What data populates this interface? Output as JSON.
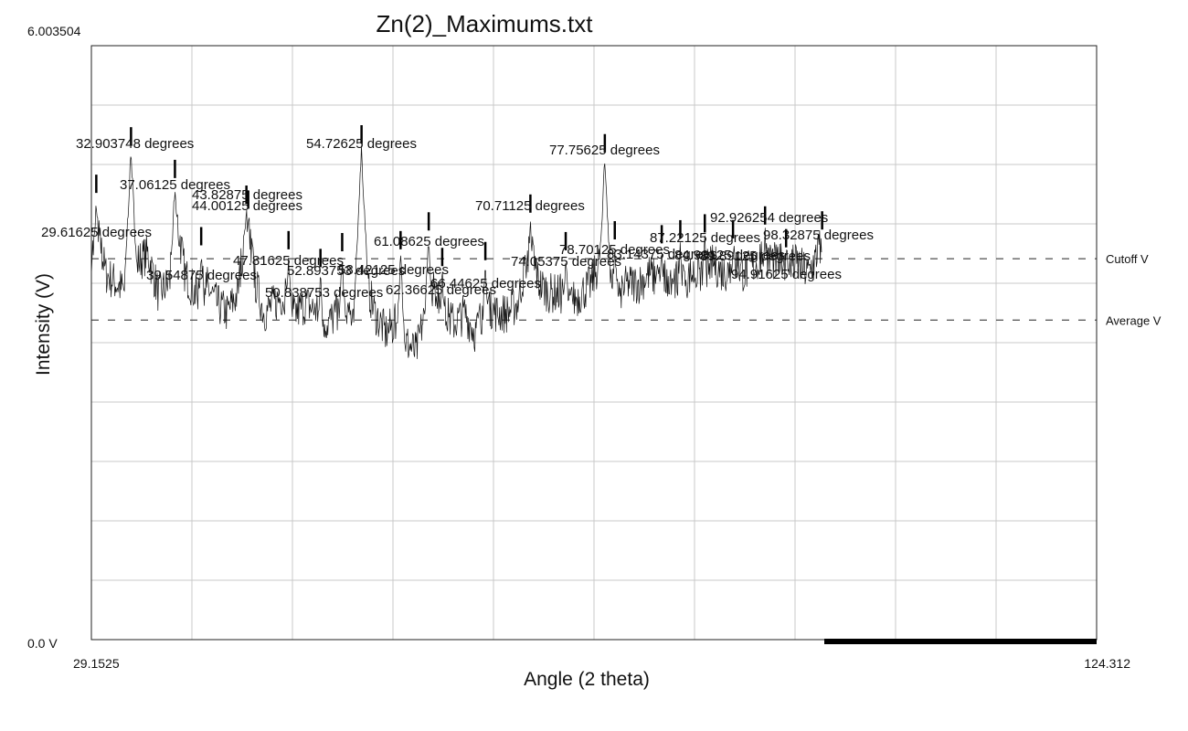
{
  "chart_data": {
    "type": "line",
    "title": "Zn(2)_Maximums.txt",
    "xlabel": "Angle (2 theta)",
    "ylabel": "Intensity (V)",
    "x_min_label": "29.1525",
    "x_max_label": "124.312",
    "y_max_label": "6.003504",
    "y_min_label": "0.0 V",
    "xlim": [
      29.1525,
      124.312
    ],
    "ylim": [
      0,
      6.003504
    ],
    "grid": true,
    "colors": {
      "line": "#111111",
      "grid": "#c8c8c8",
      "frame": "#222222"
    },
    "reference_lines": [
      {
        "name": "Cutoff V",
        "y": 3.85
      },
      {
        "name": "Average V",
        "y": 3.23
      }
    ],
    "peaks": [
      {
        "x": 29.61625,
        "y": 4.7,
        "label": "29.61625 degrees"
      },
      {
        "x": 32.903748,
        "y": 5.18,
        "label": "32.903748 degrees"
      },
      {
        "x": 37.06125,
        "y": 4.85,
        "label": "37.06125 degrees"
      },
      {
        "x": 39.54875,
        "y": 4.17,
        "label": "39.54875 degrees"
      },
      {
        "x": 43.82875,
        "y": 4.59,
        "label": "43.82875 degrees"
      },
      {
        "x": 44.00125,
        "y": 4.54,
        "label": "44.00125 degrees"
      },
      {
        "x": 47.81625,
        "y": 4.13,
        "label": "47.81625 degrees"
      },
      {
        "x": 50.838753,
        "y": 3.95,
        "label": "50.838753 degrees"
      },
      {
        "x": 52.893753,
        "y": 4.11,
        "label": "52.893753 degrees"
      },
      {
        "x": 54.72625,
        "y": 5.2,
        "label": "54.72625 degrees"
      },
      {
        "x": 58.42125,
        "y": 4.13,
        "label": "58.42125 degrees"
      },
      {
        "x": 61.08625,
        "y": 4.32,
        "label": "61.08625 degrees"
      },
      {
        "x": 62.36625,
        "y": 3.96,
        "label": "62.36625 degrees"
      },
      {
        "x": 66.44625,
        "y": 4.02,
        "label": "66.44625 degrees"
      },
      {
        "x": 70.71125,
        "y": 4.5,
        "label": "70.71125 degrees"
      },
      {
        "x": 74.05375,
        "y": 4.12,
        "label": "74.05375 degrees"
      },
      {
        "x": 77.75625,
        "y": 5.11,
        "label": "77.75625 degrees"
      },
      {
        "x": 78.70125,
        "y": 4.23,
        "label": "78.70125 degrees"
      },
      {
        "x": 83.14375,
        "y": 4.19,
        "label": "83.14375 degrees"
      },
      {
        "x": 84.90125,
        "y": 4.24,
        "label": "84.90125 degrees"
      },
      {
        "x": 87.22125,
        "y": 4.3,
        "label": "87.22125 degrees"
      },
      {
        "x": 89.89125,
        "y": 4.24,
        "label": "89.89125 degrees"
      },
      {
        "x": 92.926254,
        "y": 4.38,
        "label": "92.926254 degrees"
      },
      {
        "x": 94.91625,
        "y": 4.15,
        "label": "94.91625 degrees"
      },
      {
        "x": 98.32875,
        "y": 4.33,
        "label": "98.32875 degrees"
      }
    ],
    "trace_points": [
      [
        29.15,
        3.9
      ],
      [
        29.8,
        4.1
      ],
      [
        30.5,
        3.7
      ],
      [
        31.5,
        3.6
      ],
      [
        32.5,
        3.5
      ],
      [
        33.3,
        3.8
      ],
      [
        34.5,
        3.9
      ],
      [
        35.5,
        3.5
      ],
      [
        36.5,
        3.6
      ],
      [
        37.3,
        4.2
      ],
      [
        38.0,
        3.7
      ],
      [
        39.0,
        3.5
      ],
      [
        40.0,
        3.6
      ],
      [
        41.0,
        3.4
      ],
      [
        42.0,
        3.3
      ],
      [
        43.0,
        3.5
      ],
      [
        43.9,
        4.3
      ],
      [
        44.7,
        3.6
      ],
      [
        45.5,
        3.3
      ],
      [
        46.5,
        3.4
      ],
      [
        47.5,
        3.5
      ],
      [
        48.5,
        3.3
      ],
      [
        49.5,
        3.4
      ],
      [
        50.5,
        3.3
      ],
      [
        51.5,
        3.2
      ],
      [
        52.5,
        3.3
      ],
      [
        53.5,
        3.2
      ],
      [
        54.5,
        3.6
      ],
      [
        55.2,
        3.6
      ],
      [
        56.0,
        3.3
      ],
      [
        57.0,
        3.1
      ],
      [
        58.0,
        3.2
      ],
      [
        59.0,
        3.0
      ],
      [
        59.9,
        2.9
      ],
      [
        60.7,
        3.3
      ],
      [
        61.5,
        3.6
      ],
      [
        62.5,
        3.3
      ],
      [
        63.5,
        3.2
      ],
      [
        64.5,
        3.3
      ],
      [
        65.5,
        3.1
      ],
      [
        66.5,
        3.4
      ],
      [
        67.5,
        3.3
      ],
      [
        68.5,
        3.3
      ],
      [
        69.5,
        3.4
      ],
      [
        70.7,
        4.0
      ],
      [
        71.5,
        3.6
      ],
      [
        72.5,
        3.5
      ],
      [
        73.5,
        3.5
      ],
      [
        74.5,
        3.4
      ],
      [
        75.5,
        3.5
      ],
      [
        76.5,
        3.6
      ],
      [
        77.2,
        3.8
      ],
      [
        78.1,
        3.6
      ],
      [
        79.0,
        3.5
      ],
      [
        80.0,
        3.6
      ],
      [
        81.0,
        3.6
      ],
      [
        82.0,
        3.7
      ],
      [
        83.0,
        3.6
      ],
      [
        84.0,
        3.7
      ],
      [
        85.0,
        3.6
      ],
      [
        86.0,
        3.7
      ],
      [
        87.0,
        3.7
      ],
      [
        88.0,
        3.8
      ],
      [
        89.0,
        3.7
      ],
      [
        90.0,
        3.8
      ],
      [
        91.0,
        3.7
      ],
      [
        92.0,
        3.8
      ],
      [
        93.0,
        3.9
      ],
      [
        94.0,
        3.8
      ],
      [
        95.0,
        3.8
      ],
      [
        96.0,
        3.8
      ],
      [
        97.0,
        3.7
      ],
      [
        98.3,
        4.0
      ]
    ]
  }
}
